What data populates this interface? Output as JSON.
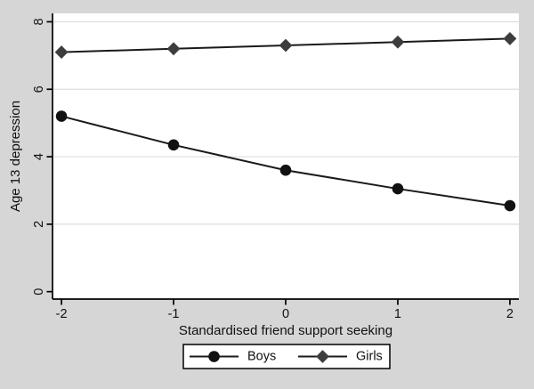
{
  "figure": {
    "background_color": "#d6d6d6",
    "plot_background_color": "#ffffff",
    "grid_color": "#dedede",
    "axis_color": "#000000",
    "text_color": "#111111",
    "legend_border_color": "#000000"
  },
  "chart_data": {
    "type": "line",
    "x": [
      -2,
      -1,
      0,
      1,
      2
    ],
    "series": [
      {
        "name": "Boys",
        "values": [
          5.2,
          4.35,
          3.6,
          3.05,
          2.55
        ],
        "marker": "circle",
        "line_color": "#1a1a1a",
        "marker_color": "#111111"
      },
      {
        "name": "Girls",
        "values": [
          7.1,
          7.2,
          7.3,
          7.4,
          7.5
        ],
        "marker": "diamond",
        "line_color": "#1a1a1a",
        "marker_color": "#3d3d3d"
      }
    ],
    "title": "",
    "xlabel": "Standardised friend support seeking",
    "ylabel": "Age 13 depression",
    "xticks": [
      "-2",
      "-1",
      "0",
      "1",
      "2"
    ],
    "xtick_values": [
      -2,
      -1,
      0,
      1,
      2
    ],
    "yticks": [
      "0",
      "2",
      "4",
      "6",
      "8"
    ],
    "ytick_values": [
      0,
      2,
      4,
      6,
      8
    ],
    "gridline_values": [
      2,
      4,
      6,
      8
    ],
    "xlim": [
      -2.08,
      2.08
    ],
    "ylim": [
      -0.22,
      8.25
    ],
    "grid": "horizontal-only",
    "ytick_label_rotation": -90,
    "legend": {
      "position": "bottom-center",
      "entries": [
        "Boys",
        "Girls"
      ]
    }
  }
}
